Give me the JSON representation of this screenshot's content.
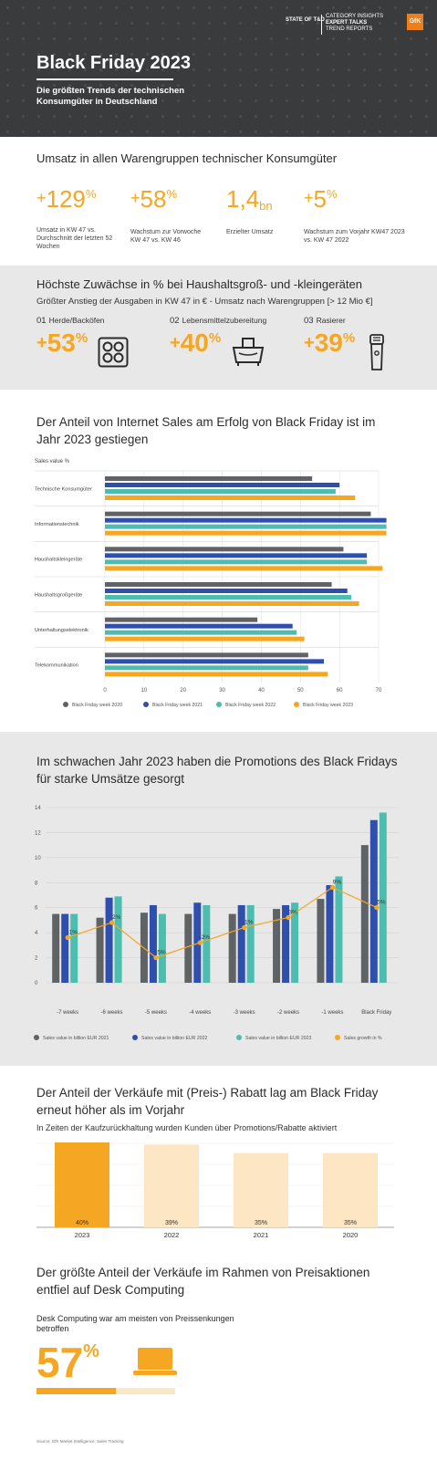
{
  "header": {
    "title": "Black Friday 2023",
    "subtitle_line1": "Die größten Trends der technischen",
    "subtitle_line2": "Konsumgüter in Deutschland",
    "brand_left": "STATE OF T&D",
    "brand_right_1": "CATEGORY INSIGHTS",
    "brand_right_2": "EXPERT TALKS",
    "brand_right_3": "TREND REPORTS",
    "logo_text": "GfK",
    "logo_color": "#ef7d1a"
  },
  "section1": {
    "title": "Umsatz in allen Warengruppen technischer Konsumgüter",
    "kpis": [
      {
        "prefix": "+",
        "value": "129",
        "unit": "%",
        "label": "Umsatz in KW 47 vs. Durchschnitt der letzten 52 Wochen"
      },
      {
        "prefix": "+",
        "value": "58",
        "unit": "%",
        "label": "Wachstum zur Vorwoche KW 47 vs. KW 46"
      },
      {
        "prefix": "",
        "value": "1,4",
        "unit": "bn",
        "label": "Erzielter Umsatz"
      },
      {
        "prefix": "+",
        "value": "5",
        "unit": "%",
        "label": "Wachstum zum Vorjahr KW47 2023 vs. KW 47 2022"
      }
    ]
  },
  "section2": {
    "title": "Höchste Zuwächse in % bei Haushaltsgroß- und -kleingeräten",
    "subtitle": "Größter Anstieg der Ausgaben in KW 47 in € - Umsatz nach Warengruppen [> 12 Mio €]",
    "items": [
      {
        "num": "01",
        "label": "Herde/Backöfen",
        "prefix": "+",
        "value": "53",
        "unit": "%",
        "icon": "cooktop-icon"
      },
      {
        "num": "02",
        "label": "Lebensmittelzubereitung",
        "prefix": "+",
        "value": "40",
        "unit": "%",
        "icon": "food-processor-icon"
      },
      {
        "num": "03",
        "label": "Rasierer",
        "prefix": "+",
        "value": "39",
        "unit": "%",
        "icon": "shaver-icon"
      }
    ]
  },
  "section3": {
    "title": "Der Anteil von Internet Sales am Erfolg von Black Friday ist im Jahr 2023 gestiegen"
  },
  "section4": {
    "title": "Im schwachen Jahr 2023 haben die Promotions des Black Fridays für starke Umsätze gesorgt"
  },
  "section5": {
    "title": "Der Anteil der Verkäufe mit (Preis-) Rabatt lag am Black Friday erneut höher als im Vorjahr",
    "subtitle": "In Zeiten der Kaufzurückhaltung wurden Kunden über Promotions/Rabatte aktiviert"
  },
  "section6": {
    "title": "Der größte Anteil der Verkäufe im Rahmen von Preisaktionen entfiel auf Desk Computing",
    "subtitle": "Desk Computing war am meisten von Preissenkungen betroffen",
    "value": "57",
    "unit": "%",
    "share": 0.57,
    "icon": "laptop-icon"
  },
  "source": "Source: GfK Market Intelligence; Sales Tracking",
  "colors": {
    "accent": "#f5a623",
    "dark": "#3a3b3d",
    "grey": "#5f6366",
    "blue": "#2f4fae",
    "teal": "#4dbdb0",
    "light_orange": "#fde6c3"
  },
  "chart_data": [
    {
      "type": "bar",
      "orientation": "horizontal",
      "title": "Der Anteil von Internet Sales am Erfolg von Black Friday ist im Jahr 2023 gestiegen",
      "ylabel": "Sales value %",
      "categories": [
        "Technische Konsumgüter",
        "Informationstechnik",
        "Haushaltskleingeräte",
        "Haushaltsgroßgeräte",
        "Unterhaltungselektronik",
        "Telekommunikation"
      ],
      "series": [
        {
          "name": "Black Friday week 2020",
          "color": "#5f6366",
          "values": [
            53,
            68,
            61,
            58,
            39,
            52
          ]
        },
        {
          "name": "Black Friday week 2021",
          "color": "#2f4fae",
          "values": [
            60,
            72,
            67,
            62,
            48,
            56
          ]
        },
        {
          "name": "Black Friday week 2022",
          "color": "#4dbdb0",
          "values": [
            59,
            72,
            67,
            63,
            49,
            52
          ]
        },
        {
          "name": "Black Friday week 2023",
          "color": "#f5a623",
          "values": [
            64,
            72,
            71,
            65,
            51,
            57
          ]
        }
      ],
      "xlim": [
        0,
        70
      ],
      "ticks": [
        0,
        10,
        20,
        30,
        40,
        50,
        60,
        70
      ],
      "grid": true,
      "legend": "bottom"
    },
    {
      "type": "bar",
      "title": "Im schwachen Jahr 2023 haben die Promotions des Black Fridays für starke Umsätze gesorgt",
      "categories": [
        "-7 weeks",
        "-6 weeks",
        "-5 weeks",
        "-4 weeks",
        "-3 weeks",
        "-2 weeks",
        "-1 weeks",
        "Black Friday"
      ],
      "series": [
        {
          "name": "Sales value in billion EUR 2021",
          "color": "#5f6366",
          "values": [
            5.5,
            5.2,
            5.6,
            5.5,
            5.5,
            5.9,
            6.7,
            11.0
          ]
        },
        {
          "name": "Sales value in billion EUR 2022",
          "color": "#2f4fae",
          "values": [
            5.5,
            6.8,
            6.2,
            6.4,
            6.2,
            6.2,
            7.8,
            13.0
          ]
        },
        {
          "name": "Sales value in billion EUR 2023",
          "color": "#4dbdb0",
          "values": [
            5.5,
            6.9,
            5.5,
            6.2,
            6.2,
            6.4,
            8.5,
            13.6
          ]
        },
        {
          "name": "Sales growth in %",
          "color": "#f5a623",
          "type": "line",
          "values": [
            -1,
            2,
            -5,
            -2,
            1,
            3,
            9,
            5
          ],
          "labels": [
            "-1%",
            "2%",
            "-5%",
            "-2%",
            "1%",
            "3%",
            "9%",
            "5%"
          ]
        }
      ],
      "ylim": [
        0,
        14
      ],
      "ticks": [
        0,
        2,
        4,
        6,
        8,
        10,
        12,
        14
      ],
      "grid": true,
      "legend": "bottom"
    },
    {
      "type": "bar",
      "title": "Der Anteil der Verkäufe mit (Preis-) Rabatt lag am Black Friday erneut höher als im Vorjahr",
      "categories": [
        "2023",
        "2022",
        "2021",
        "2020"
      ],
      "values": [
        40,
        39,
        35,
        35
      ],
      "labels": [
        "40%",
        "39%",
        "35%",
        "35%"
      ],
      "colors": [
        "#f5a623",
        "#fde6c3",
        "#fde6c3",
        "#fde6c3"
      ]
    }
  ]
}
